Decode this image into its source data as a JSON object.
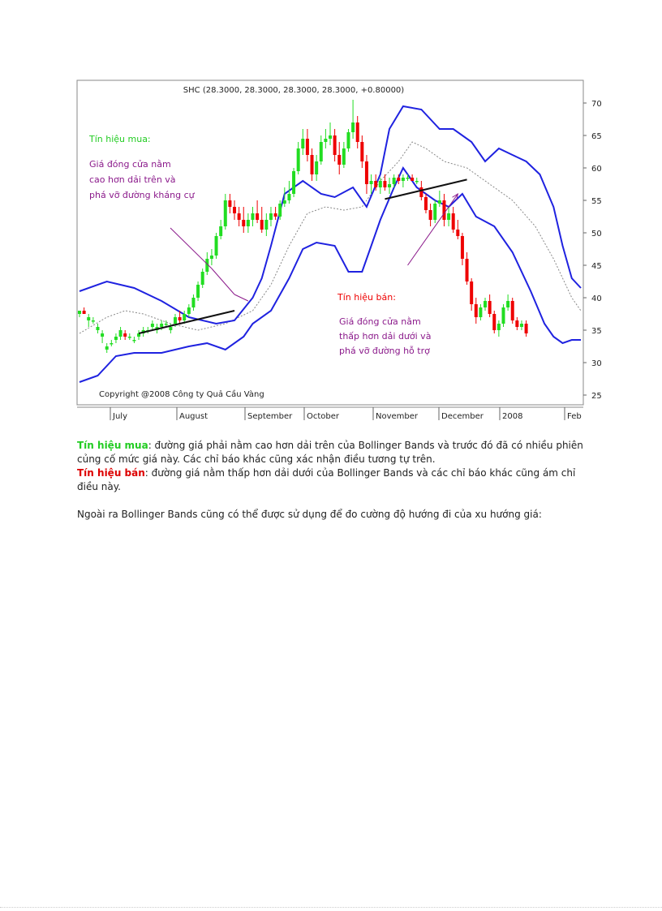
{
  "chart_data": {
    "type": "candlestick",
    "title": "SHC (28.3000, 28.3000, 28.3000, 28.3000, +0.80000)",
    "copyright": "Copyright @2008 Công ty Quả Cầu Vàng",
    "y_ticks": [
      25,
      30,
      35,
      40,
      45,
      50,
      55,
      60,
      65,
      70
    ],
    "ylim": [
      23.5,
      73.5
    ],
    "x_labels": [
      "July",
      "August",
      "September",
      "October",
      "November",
      "December",
      "2008",
      "Feb"
    ],
    "bands": {
      "upper": [
        [
          0,
          41
        ],
        [
          6,
          42.5
        ],
        [
          12,
          41.5
        ],
        [
          18,
          39.5
        ],
        [
          24,
          37
        ],
        [
          30,
          36
        ],
        [
          34,
          36.5
        ],
        [
          38,
          40
        ],
        [
          40,
          43
        ],
        [
          42,
          48
        ],
        [
          45,
          56
        ],
        [
          49,
          58
        ],
        [
          53,
          56
        ],
        [
          56,
          55.5
        ],
        [
          60,
          57
        ],
        [
          63,
          54
        ],
        [
          66,
          59
        ],
        [
          68,
          66
        ],
        [
          71,
          69.5
        ],
        [
          75,
          69
        ],
        [
          79,
          66
        ],
        [
          82,
          66
        ],
        [
          86,
          64
        ],
        [
          89,
          61
        ],
        [
          92,
          63
        ],
        [
          95,
          62
        ],
        [
          98,
          61
        ],
        [
          101,
          59
        ],
        [
          104,
          54
        ],
        [
          106,
          48
        ],
        [
          108,
          43
        ],
        [
          110,
          41.5
        ]
      ],
      "middle": [
        [
          0,
          34.5
        ],
        [
          6,
          37
        ],
        [
          10,
          38
        ],
        [
          14,
          37.5
        ],
        [
          20,
          36
        ],
        [
          26,
          35
        ],
        [
          32,
          36
        ],
        [
          38,
          38
        ],
        [
          42,
          42
        ],
        [
          46,
          48
        ],
        [
          50,
          53
        ],
        [
          54,
          54
        ],
        [
          58,
          53.5
        ],
        [
          62,
          54
        ],
        [
          66,
          58
        ],
        [
          70,
          61
        ],
        [
          73,
          64
        ],
        [
          76,
          63
        ],
        [
          80,
          61
        ],
        [
          85,
          60
        ],
        [
          90,
          57.5
        ],
        [
          95,
          55
        ],
        [
          100,
          51
        ],
        [
          104,
          46
        ],
        [
          108,
          40
        ],
        [
          110,
          38
        ]
      ],
      "lower": [
        [
          0,
          27
        ],
        [
          4,
          28
        ],
        [
          8,
          31
        ],
        [
          12,
          31.5
        ],
        [
          18,
          31.5
        ],
        [
          24,
          32.5
        ],
        [
          28,
          33
        ],
        [
          32,
          32
        ],
        [
          36,
          34
        ],
        [
          38,
          36
        ],
        [
          42,
          38
        ],
        [
          46,
          43
        ],
        [
          49,
          47.5
        ],
        [
          52,
          48.5
        ],
        [
          56,
          48
        ],
        [
          59,
          44
        ],
        [
          62,
          44
        ],
        [
          64,
          48
        ],
        [
          66,
          52
        ],
        [
          69,
          57
        ],
        [
          71,
          60
        ],
        [
          74,
          57
        ],
        [
          78,
          55
        ],
        [
          81,
          54
        ],
        [
          84,
          56
        ],
        [
          87,
          52.5
        ],
        [
          91,
          51
        ],
        [
          95,
          47
        ],
        [
          99,
          41
        ],
        [
          102,
          36
        ],
        [
          104,
          34
        ],
        [
          106,
          33
        ],
        [
          108,
          33.5
        ],
        [
          110,
          33.5
        ]
      ]
    },
    "candles": [
      [
        0,
        37.5,
        38,
        37,
        38
      ],
      [
        1,
        38,
        38.5,
        37.5,
        37.5
      ],
      [
        2,
        36.5,
        37.5,
        35.5,
        37
      ],
      [
        3,
        36.5,
        37,
        36,
        36.5
      ],
      [
        4,
        35,
        36,
        34.5,
        35.5
      ],
      [
        5,
        34,
        35,
        33,
        34.5
      ],
      [
        6,
        32,
        33,
        31.5,
        32.5
      ],
      [
        7,
        33,
        33.5,
        32.5,
        33
      ],
      [
        8,
        33.5,
        34.5,
        33,
        34
      ],
      [
        9,
        34,
        35.5,
        33.5,
        35
      ],
      [
        10,
        34.5,
        35,
        33.5,
        34
      ],
      [
        11,
        34,
        34.5,
        33.5,
        34
      ],
      [
        12,
        33.5,
        34,
        33,
        33.5
      ],
      [
        13,
        34,
        35,
        33.5,
        34.5
      ],
      [
        14,
        34.5,
        35.5,
        34,
        35
      ],
      [
        15,
        35,
        35.5,
        34.5,
        35
      ],
      [
        16,
        35.5,
        36.5,
        35,
        36
      ],
      [
        17,
        35,
        36,
        34.5,
        35.5
      ],
      [
        18,
        35.5,
        36.5,
        35,
        36
      ],
      [
        19,
        36,
        36.5,
        35.5,
        36
      ],
      [
        20,
        35,
        36,
        34.5,
        35.5
      ],
      [
        21,
        36,
        37.5,
        35.5,
        37
      ],
      [
        22,
        37,
        38,
        36,
        36.5
      ],
      [
        23,
        36.5,
        38,
        36,
        37.5
      ],
      [
        24,
        37.5,
        39,
        37,
        38.5
      ],
      [
        25,
        38.5,
        40.5,
        38,
        40
      ],
      [
        26,
        40,
        42.5,
        39.5,
        42
      ],
      [
        27,
        42,
        44.5,
        41.5,
        44
      ],
      [
        28,
        44,
        47,
        43.5,
        46
      ],
      [
        29,
        46,
        47.5,
        45,
        46.5
      ],
      [
        30,
        46.5,
        50,
        46,
        49.5
      ],
      [
        31,
        49.5,
        52,
        49,
        51
      ],
      [
        32,
        51,
        56,
        50.5,
        55
      ],
      [
        33,
        55,
        56,
        53,
        54
      ],
      [
        34,
        54,
        55,
        52,
        53
      ],
      [
        35,
        53,
        54,
        51,
        52
      ],
      [
        36,
        52,
        54,
        50,
        51
      ],
      [
        37,
        51,
        53,
        50,
        52
      ],
      [
        38,
        52,
        54,
        51,
        53
      ],
      [
        39,
        53,
        55,
        51.5,
        52
      ],
      [
        40,
        52,
        54,
        50,
        50.5
      ],
      [
        41,
        50.5,
        53,
        49.5,
        52
      ],
      [
        42,
        52,
        54,
        51,
        53
      ],
      [
        43,
        53,
        54,
        52,
        52.5
      ],
      [
        44,
        52.5,
        55,
        52,
        54.5
      ],
      [
        45,
        54.5,
        57,
        54,
        55
      ],
      [
        46,
        55,
        58,
        54.5,
        56
      ],
      [
        47,
        56,
        60,
        55.5,
        59.5
      ],
      [
        48,
        59.5,
        64,
        59,
        63
      ],
      [
        49,
        63,
        66,
        62,
        64.5
      ],
      [
        50,
        64.5,
        66,
        61,
        62
      ],
      [
        51,
        62,
        63,
        58,
        59
      ],
      [
        52,
        59,
        62,
        58,
        61
      ],
      [
        53,
        61,
        65,
        60.5,
        64
      ],
      [
        54,
        64,
        66,
        63,
        64.5
      ],
      [
        55,
        64.5,
        67,
        63.5,
        65
      ],
      [
        56,
        65,
        66,
        61,
        62
      ],
      [
        57,
        62,
        64,
        59,
        60.5
      ],
      [
        58,
        60.5,
        64,
        60,
        63
      ],
      [
        59,
        63,
        66,
        62.5,
        65.5
      ],
      [
        60,
        65.5,
        70.5,
        64.5,
        67
      ],
      [
        61,
        67,
        68,
        63,
        64
      ],
      [
        62,
        64,
        65,
        60,
        61
      ],
      [
        63,
        61,
        62,
        56,
        57.5
      ],
      [
        64,
        57.5,
        59,
        56,
        58
      ],
      [
        65,
        58,
        59,
        56.5,
        57
      ],
      [
        66,
        57,
        58.5,
        56,
        58
      ],
      [
        67,
        58,
        59,
        56.5,
        57
      ],
      [
        68,
        57,
        58.5,
        56,
        57.5
      ],
      [
        69,
        57.5,
        59,
        57,
        58.5
      ],
      [
        70,
        58.5,
        59,
        57.5,
        58
      ],
      [
        71,
        58,
        59,
        57,
        58.5
      ],
      [
        72,
        58.5,
        59,
        58,
        58.5
      ],
      [
        73,
        58.5,
        59,
        58,
        58
      ],
      [
        74,
        58,
        58.5,
        57.5,
        58
      ],
      [
        75,
        57,
        58,
        55,
        55.5
      ],
      [
        76,
        55.5,
        56,
        53,
        53.5
      ],
      [
        77,
        53.5,
        54.5,
        51,
        52
      ],
      [
        78,
        52,
        55,
        51.5,
        54.5
      ],
      [
        79,
        54.5,
        56.5,
        54,
        55
      ],
      [
        80,
        55,
        56,
        51,
        52
      ],
      [
        81,
        52,
        54,
        51,
        53
      ],
      [
        82,
        53,
        54,
        50,
        50.5
      ],
      [
        83,
        50.5,
        52,
        49,
        49.5
      ],
      [
        84,
        49.5,
        50,
        45,
        46
      ],
      [
        85,
        46,
        47,
        42,
        42.5
      ],
      [
        86,
        42.5,
        43,
        38,
        39
      ],
      [
        87,
        39,
        40,
        36,
        37
      ],
      [
        88,
        37,
        39,
        36.5,
        38.5
      ],
      [
        89,
        38.5,
        40,
        38,
        39.5
      ],
      [
        90,
        39.5,
        40.5,
        37,
        37.5
      ],
      [
        91,
        37.5,
        38,
        34.5,
        35
      ],
      [
        92,
        35,
        36.5,
        34,
        36
      ],
      [
        93,
        36,
        39,
        35.5,
        38.5
      ],
      [
        94,
        38.5,
        40.5,
        38,
        39.5
      ],
      [
        95,
        39.5,
        40,
        36,
        36.5
      ],
      [
        96,
        36.5,
        37,
        35,
        35.5
      ],
      [
        97,
        35.5,
        36.5,
        35,
        36
      ],
      [
        98,
        36,
        36.5,
        34,
        34.5
      ]
    ],
    "trendlines": [
      [
        [
          13,
          34.5
        ],
        [
          34,
          38
        ]
      ],
      [
        [
          67,
          55.2
        ],
        [
          85,
          58.2
        ]
      ]
    ],
    "connector_lines": [
      [
        [
          29,
          44.5
        ],
        [
          34,
          40.5
        ]
      ],
      [
        [
          34,
          40.5
        ],
        [
          37,
          39.5
        ]
      ]
    ],
    "arrow": [
      [
        72,
        45
      ],
      [
        83,
        56
      ]
    ],
    "annotations": {
      "buy_title": "Tín hiệu mua:",
      "buy_body": [
        "Giá đóng cửa nằm",
        "cao hơn dải trên và",
        "phá vỡ đường kháng cự"
      ],
      "sell_title": "Tín hiệu bán:",
      "sell_body": [
        "Giá đóng cửa nằm",
        "thấp hơn dải dưới và",
        "phá vỡ đường hỗ trợ"
      ]
    },
    "colors": {
      "band": "#1f22e0",
      "middle": "#888888",
      "up_candle": "#22dd22",
      "down_candle": "#ee0000",
      "buy_text": "#22cc22",
      "sell_text": "#ee0000",
      "note_text": "#8b1a8b"
    }
  },
  "text": {
    "buy_label": "Tín hiệu mua",
    "buy_text": ": đường giá phải nằm cao hơn dải trên của Bollinger Bands và trước đó đã có nhiều phiên củng cố mức giá này. Các chỉ báo khác cũng xác nhận điều tương tự trên.",
    "sell_label": "Tín hiệu bán",
    "sell_text": ": đường giá nằm thấp hơn dải dưới của Bollinger Bands và các chỉ báo khác cũng ám chỉ điều này.",
    "extra": "Ngoài ra Bollinger Bands cũng có thể được sử dụng để đo cường độ hướng đi của xu hướng giá:"
  }
}
